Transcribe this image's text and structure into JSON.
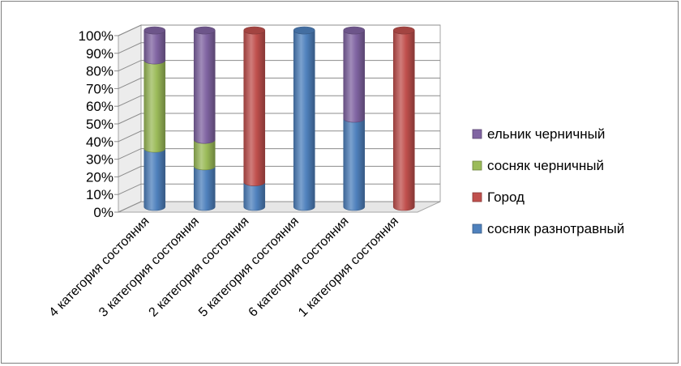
{
  "chart_data": {
    "type": "bar",
    "stacked": "percent",
    "three_d": true,
    "categories": [
      "4 категория состояния",
      "3 категория состояния",
      "2 категория состояния",
      "5 категория состояния",
      "6 категория состояния",
      "1 категория состояния"
    ],
    "series": [
      {
        "name": "сосняк разнотравный",
        "color": "#4f81bd",
        "values": [
          33,
          23,
          14,
          100,
          50,
          0
        ]
      },
      {
        "name": "Город",
        "color": "#c0504d",
        "values": [
          0,
          0,
          86,
          0,
          0,
          100
        ]
      },
      {
        "name": "сосняк черничный",
        "color": "#9bbb59",
        "values": [
          50,
          15,
          0,
          0,
          0,
          0
        ]
      },
      {
        "name": "ельник черничный",
        "color": "#8064a2",
        "values": [
          17,
          62,
          0,
          0,
          50,
          0
        ]
      }
    ],
    "legend_order": [
      "ельник черничный",
      "сосняк черничный",
      "Город",
      "сосняк разнотравный"
    ],
    "yticks": [
      "0%",
      "10%",
      "20%",
      "30%",
      "40%",
      "50%",
      "60%",
      "70%",
      "80%",
      "90%",
      "100%"
    ],
    "ylim": [
      0,
      100
    ],
    "legend_position": "right",
    "grid": true
  }
}
